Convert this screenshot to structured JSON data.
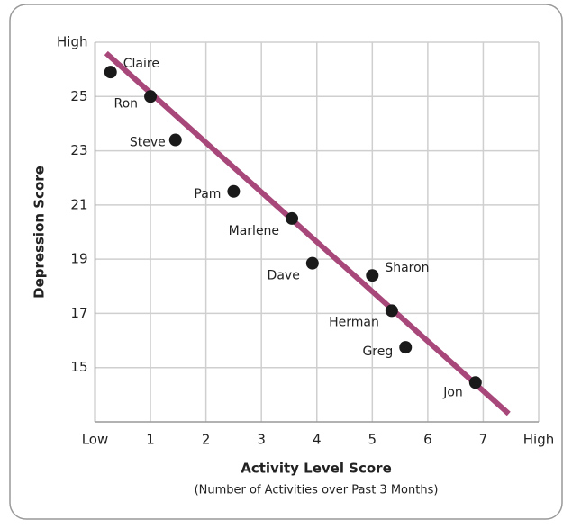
{
  "chart_data": {
    "type": "scatter",
    "x_label": "Activity Level Score",
    "x_sublabel": "(Number of Activities over Past 3 Months)",
    "y_label": "Depression Score",
    "xlim": [
      0,
      8
    ],
    "xticks": [
      {
        "value": 0,
        "label": "Low"
      },
      1,
      2,
      3,
      4,
      5,
      6,
      7,
      {
        "value": 8,
        "label": "High"
      }
    ],
    "ylim": [
      13,
      27
    ],
    "yticks": [
      15,
      17,
      19,
      21,
      23,
      25,
      {
        "value": 27,
        "label": "High"
      }
    ],
    "grid": true,
    "labels": [
      "Claire",
      "Ron",
      "Steve",
      "Pam",
      "Marlene",
      "Dave",
      "Sharon",
      "Herman",
      "Greg",
      "Jon"
    ],
    "x": [
      0.28,
      1.0,
      1.45,
      2.5,
      3.55,
      3.92,
      5.0,
      5.35,
      5.6,
      6.86
    ],
    "y": [
      25.9,
      25.0,
      23.4,
      21.5,
      20.5,
      18.85,
      18.4,
      17.1,
      15.75,
      14.45
    ],
    "color": "#1a1a1a",
    "trend_line": {
      "x": [
        0.2,
        7.46
      ],
      "y": [
        26.6,
        13.3
      ],
      "color": "#a8487a"
    }
  }
}
